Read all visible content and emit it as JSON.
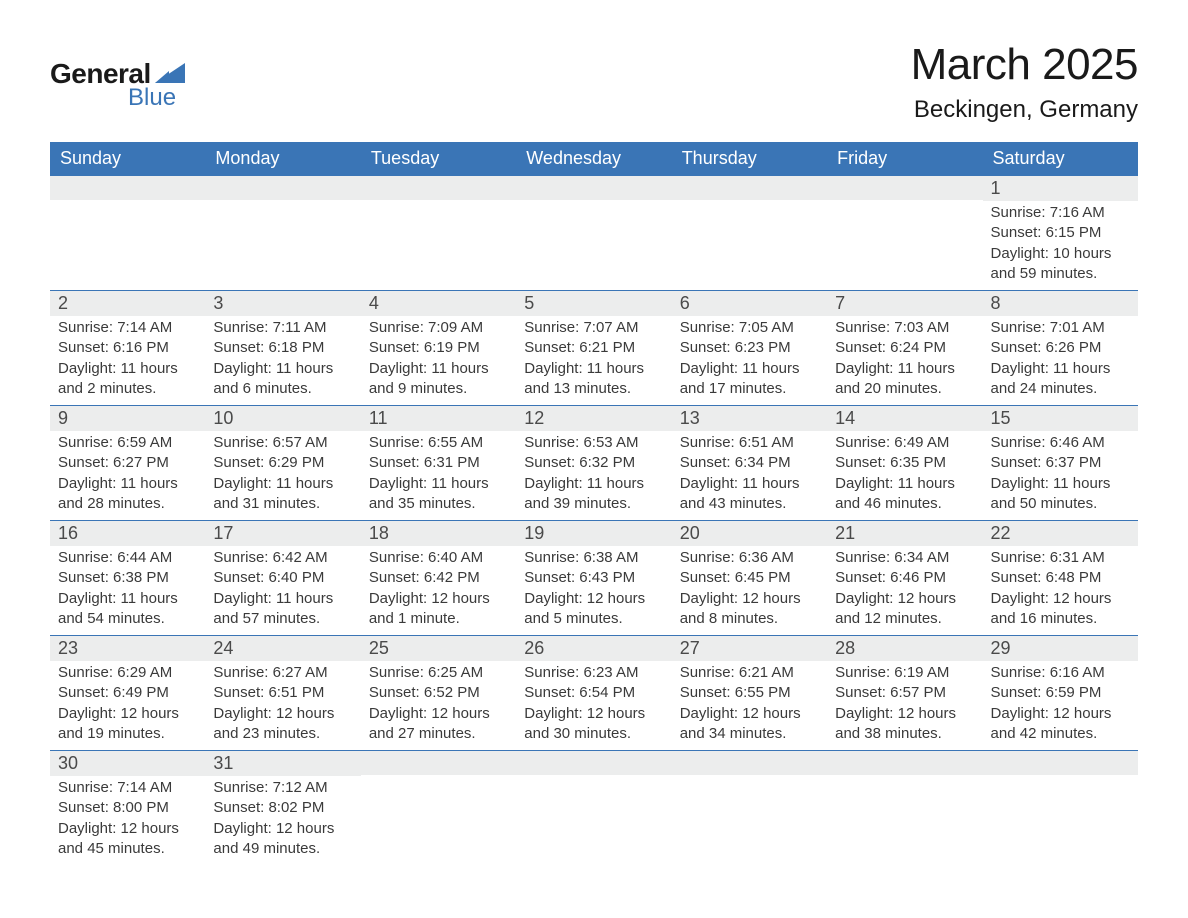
{
  "brand": {
    "word1": "General",
    "word2": "Blue",
    "accent_color": "#3a75b6"
  },
  "title": "March 2025",
  "location": "Beckingen, Germany",
  "colors": {
    "header_bg": "#3a75b6",
    "header_text": "#ffffff",
    "band_bg": "#eceded",
    "body_text": "#3a3a3a",
    "rule": "#3a75b6",
    "page_bg": "#ffffff"
  },
  "typography": {
    "title_fontsize": 44,
    "location_fontsize": 24,
    "header_fontsize": 18,
    "daynum_fontsize": 18,
    "body_fontsize": 15
  },
  "weekdays": [
    "Sunday",
    "Monday",
    "Tuesday",
    "Wednesday",
    "Thursday",
    "Friday",
    "Saturday"
  ],
  "weeks": [
    [
      null,
      null,
      null,
      null,
      null,
      null,
      {
        "n": "1",
        "sunrise": "Sunrise: 7:16 AM",
        "sunset": "Sunset: 6:15 PM",
        "daylight": "Daylight: 10 hours and 59 minutes."
      }
    ],
    [
      {
        "n": "2",
        "sunrise": "Sunrise: 7:14 AM",
        "sunset": "Sunset: 6:16 PM",
        "daylight": "Daylight: 11 hours and 2 minutes."
      },
      {
        "n": "3",
        "sunrise": "Sunrise: 7:11 AM",
        "sunset": "Sunset: 6:18 PM",
        "daylight": "Daylight: 11 hours and 6 minutes."
      },
      {
        "n": "4",
        "sunrise": "Sunrise: 7:09 AM",
        "sunset": "Sunset: 6:19 PM",
        "daylight": "Daylight: 11 hours and 9 minutes."
      },
      {
        "n": "5",
        "sunrise": "Sunrise: 7:07 AM",
        "sunset": "Sunset: 6:21 PM",
        "daylight": "Daylight: 11 hours and 13 minutes."
      },
      {
        "n": "6",
        "sunrise": "Sunrise: 7:05 AM",
        "sunset": "Sunset: 6:23 PM",
        "daylight": "Daylight: 11 hours and 17 minutes."
      },
      {
        "n": "7",
        "sunrise": "Sunrise: 7:03 AM",
        "sunset": "Sunset: 6:24 PM",
        "daylight": "Daylight: 11 hours and 20 minutes."
      },
      {
        "n": "8",
        "sunrise": "Sunrise: 7:01 AM",
        "sunset": "Sunset: 6:26 PM",
        "daylight": "Daylight: 11 hours and 24 minutes."
      }
    ],
    [
      {
        "n": "9",
        "sunrise": "Sunrise: 6:59 AM",
        "sunset": "Sunset: 6:27 PM",
        "daylight": "Daylight: 11 hours and 28 minutes."
      },
      {
        "n": "10",
        "sunrise": "Sunrise: 6:57 AM",
        "sunset": "Sunset: 6:29 PM",
        "daylight": "Daylight: 11 hours and 31 minutes."
      },
      {
        "n": "11",
        "sunrise": "Sunrise: 6:55 AM",
        "sunset": "Sunset: 6:31 PM",
        "daylight": "Daylight: 11 hours and 35 minutes."
      },
      {
        "n": "12",
        "sunrise": "Sunrise: 6:53 AM",
        "sunset": "Sunset: 6:32 PM",
        "daylight": "Daylight: 11 hours and 39 minutes."
      },
      {
        "n": "13",
        "sunrise": "Sunrise: 6:51 AM",
        "sunset": "Sunset: 6:34 PM",
        "daylight": "Daylight: 11 hours and 43 minutes."
      },
      {
        "n": "14",
        "sunrise": "Sunrise: 6:49 AM",
        "sunset": "Sunset: 6:35 PM",
        "daylight": "Daylight: 11 hours and 46 minutes."
      },
      {
        "n": "15",
        "sunrise": "Sunrise: 6:46 AM",
        "sunset": "Sunset: 6:37 PM",
        "daylight": "Daylight: 11 hours and 50 minutes."
      }
    ],
    [
      {
        "n": "16",
        "sunrise": "Sunrise: 6:44 AM",
        "sunset": "Sunset: 6:38 PM",
        "daylight": "Daylight: 11 hours and 54 minutes."
      },
      {
        "n": "17",
        "sunrise": "Sunrise: 6:42 AM",
        "sunset": "Sunset: 6:40 PM",
        "daylight": "Daylight: 11 hours and 57 minutes."
      },
      {
        "n": "18",
        "sunrise": "Sunrise: 6:40 AM",
        "sunset": "Sunset: 6:42 PM",
        "daylight": "Daylight: 12 hours and 1 minute."
      },
      {
        "n": "19",
        "sunrise": "Sunrise: 6:38 AM",
        "sunset": "Sunset: 6:43 PM",
        "daylight": "Daylight: 12 hours and 5 minutes."
      },
      {
        "n": "20",
        "sunrise": "Sunrise: 6:36 AM",
        "sunset": "Sunset: 6:45 PM",
        "daylight": "Daylight: 12 hours and 8 minutes."
      },
      {
        "n": "21",
        "sunrise": "Sunrise: 6:34 AM",
        "sunset": "Sunset: 6:46 PM",
        "daylight": "Daylight: 12 hours and 12 minutes."
      },
      {
        "n": "22",
        "sunrise": "Sunrise: 6:31 AM",
        "sunset": "Sunset: 6:48 PM",
        "daylight": "Daylight: 12 hours and 16 minutes."
      }
    ],
    [
      {
        "n": "23",
        "sunrise": "Sunrise: 6:29 AM",
        "sunset": "Sunset: 6:49 PM",
        "daylight": "Daylight: 12 hours and 19 minutes."
      },
      {
        "n": "24",
        "sunrise": "Sunrise: 6:27 AM",
        "sunset": "Sunset: 6:51 PM",
        "daylight": "Daylight: 12 hours and 23 minutes."
      },
      {
        "n": "25",
        "sunrise": "Sunrise: 6:25 AM",
        "sunset": "Sunset: 6:52 PM",
        "daylight": "Daylight: 12 hours and 27 minutes."
      },
      {
        "n": "26",
        "sunrise": "Sunrise: 6:23 AM",
        "sunset": "Sunset: 6:54 PM",
        "daylight": "Daylight: 12 hours and 30 minutes."
      },
      {
        "n": "27",
        "sunrise": "Sunrise: 6:21 AM",
        "sunset": "Sunset: 6:55 PM",
        "daylight": "Daylight: 12 hours and 34 minutes."
      },
      {
        "n": "28",
        "sunrise": "Sunrise: 6:19 AM",
        "sunset": "Sunset: 6:57 PM",
        "daylight": "Daylight: 12 hours and 38 minutes."
      },
      {
        "n": "29",
        "sunrise": "Sunrise: 6:16 AM",
        "sunset": "Sunset: 6:59 PM",
        "daylight": "Daylight: 12 hours and 42 minutes."
      }
    ],
    [
      {
        "n": "30",
        "sunrise": "Sunrise: 7:14 AM",
        "sunset": "Sunset: 8:00 PM",
        "daylight": "Daylight: 12 hours and 45 minutes."
      },
      {
        "n": "31",
        "sunrise": "Sunrise: 7:12 AM",
        "sunset": "Sunset: 8:02 PM",
        "daylight": "Daylight: 12 hours and 49 minutes."
      },
      null,
      null,
      null,
      null,
      null
    ]
  ]
}
